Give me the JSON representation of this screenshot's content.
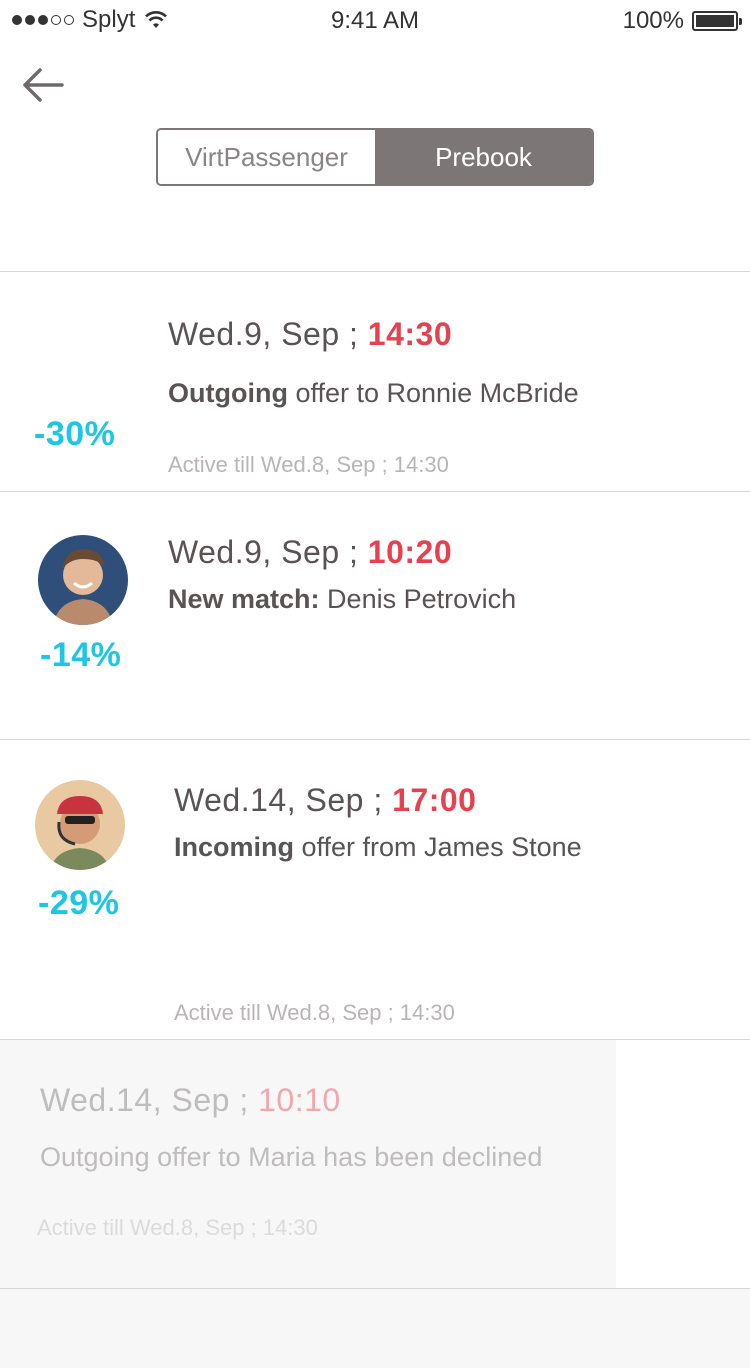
{
  "status_bar": {
    "carrier": "Splyt",
    "time": "9:41 AM",
    "battery": "100%"
  },
  "header": {
    "tabs": [
      {
        "label": "VirtPassenger",
        "active": false
      },
      {
        "label": "Prebook",
        "active": true
      }
    ]
  },
  "colors": {
    "accent_time": "#e5414f",
    "discount": "#1ec6e6",
    "segment_active": "#7c7676"
  },
  "items": [
    {
      "date": "Wed.9, Sep ;",
      "time": "14:30",
      "desc_bold": "Outgoing",
      "desc_rest": " offer to Ronnie McBride",
      "discount": "-30%",
      "active_till": "Active till Wed.8, Sep ; 14:30"
    },
    {
      "date": "Wed.9, Sep ;",
      "time": "10:20",
      "desc_bold": "New match:",
      "desc_rest": " Denis Petrovich",
      "discount": "-14%",
      "avatar": "avatar-denis"
    },
    {
      "date": "Wed.14, Sep ;",
      "time": "17:00",
      "desc_bold": "Incoming",
      "desc_rest": " offer from James Stone",
      "discount": "-29%",
      "avatar": "avatar-james",
      "active_till": "Active till Wed.8, Sep ; 14:30"
    },
    {
      "date": "Wed.14, Sep ;",
      "time": "10:10",
      "desc": "Outgoing offer to Maria has been declined",
      "active_till": "Active till Wed.8, Sep ; 14:30"
    }
  ]
}
